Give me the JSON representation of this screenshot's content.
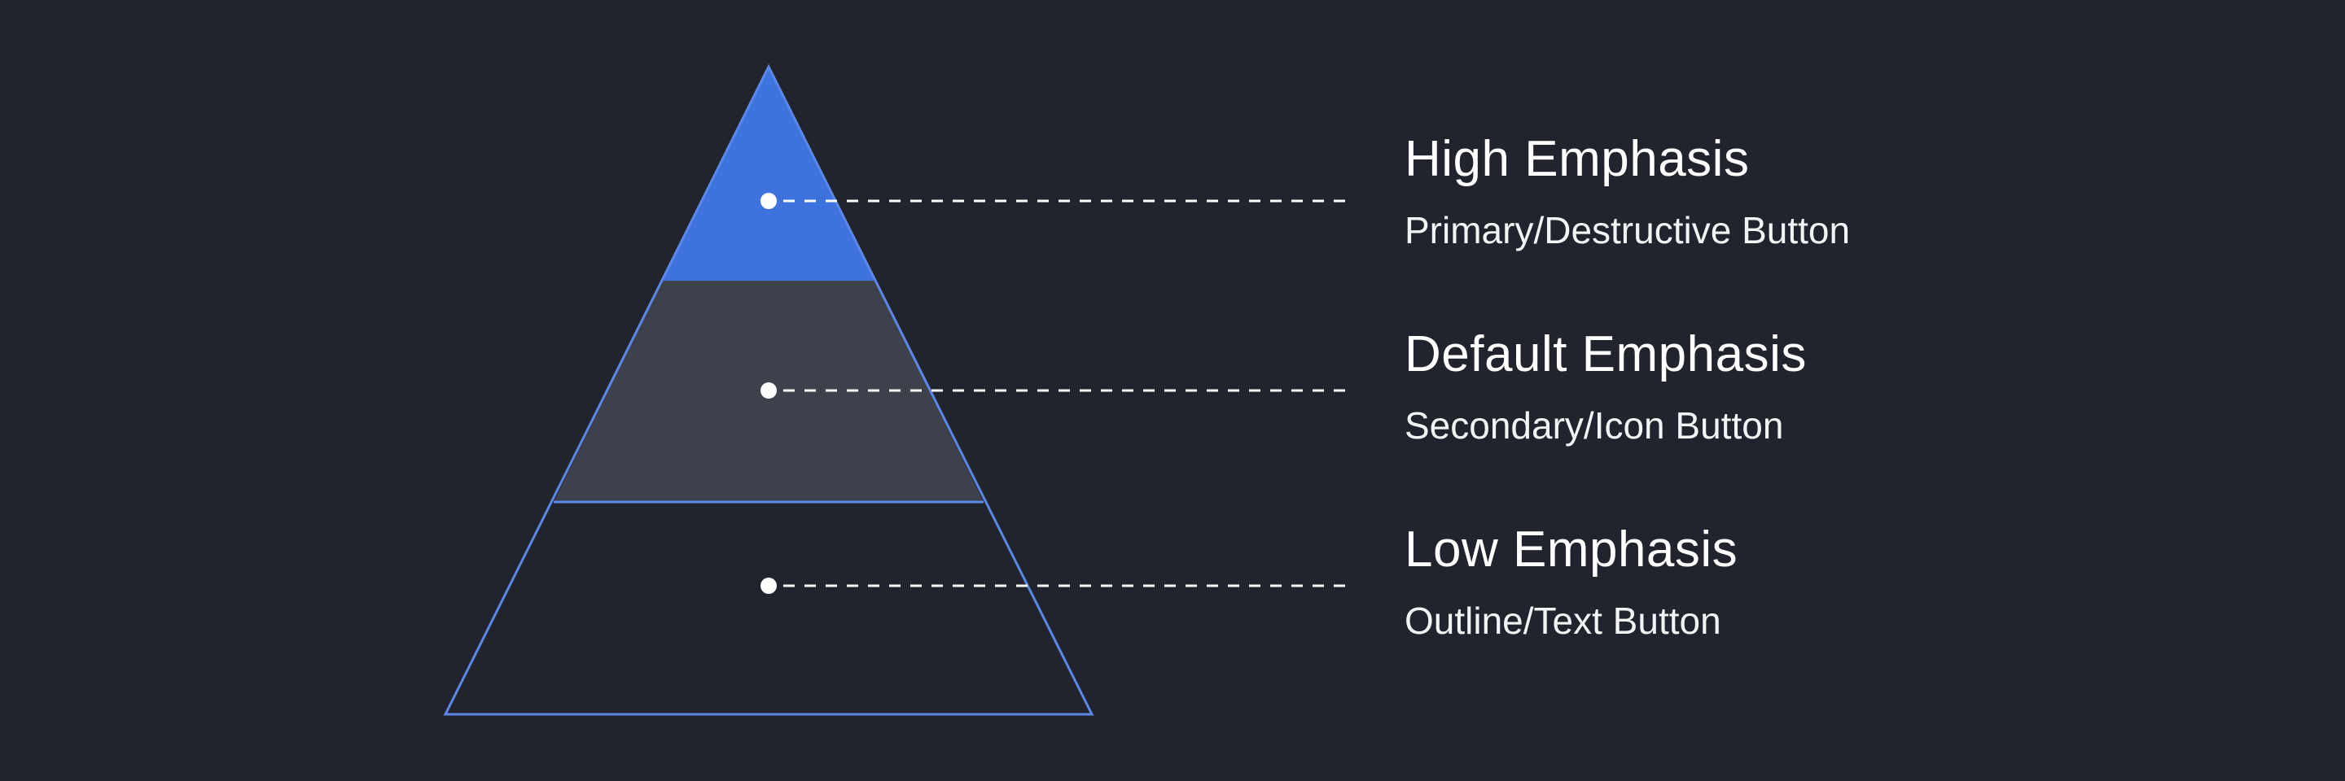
{
  "colors": {
    "background": "#22242d",
    "outline": "#5b87e6",
    "high_fill": "#3e73dd",
    "default_fill": "#3e414c",
    "low_fill": "#22242d",
    "marker": "#ffffff",
    "connector": "#ffffff",
    "text": "#ffffff"
  },
  "levels": [
    {
      "id": "high",
      "title": "High Emphasis",
      "subtitle": "Primary/Destructive Button"
    },
    {
      "id": "default",
      "title": "Default Emphasis",
      "subtitle": "Secondary/Icon Button"
    },
    {
      "id": "low",
      "title": "Low Emphasis",
      "subtitle": "Outline/Text Button"
    }
  ]
}
